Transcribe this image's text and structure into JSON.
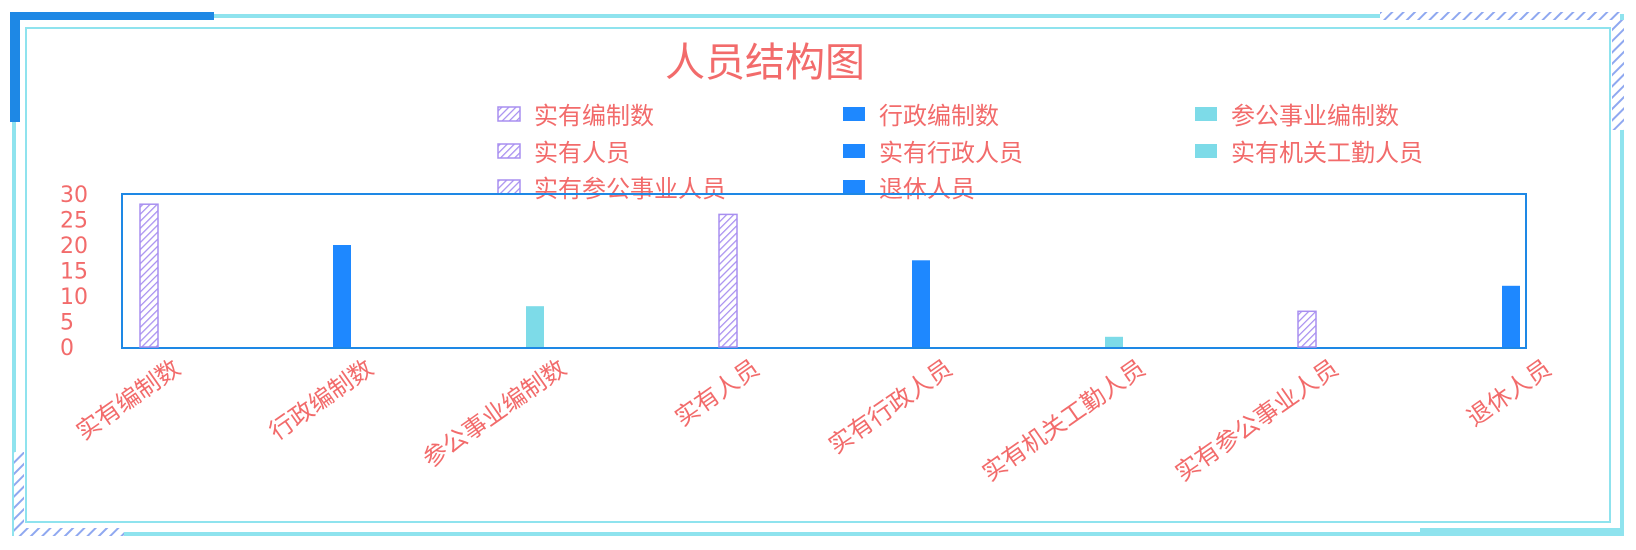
{
  "colors": {
    "label": "#f26b6b",
    "axis": "#1e88e5",
    "purple": "#a88ff0",
    "blue": "#1e88ff",
    "cyan": "#7ddbe8",
    "frame_cyan": "#8fe3ee",
    "frame_blue": "#1e88e5"
  },
  "chart_data": {
    "type": "bar",
    "title": "人员结构图",
    "categories": [
      "实有编制数",
      "行政编制数",
      "参公事业编制数",
      "实有人员",
      "实有行政人员",
      "实有机关工勤人员",
      "实有参公事业人员",
      "退休人员"
    ],
    "series": [
      {
        "name": "实有编制数",
        "category": "实有编制数",
        "value": 28,
        "style": "purple-hatched"
      },
      {
        "name": "行政编制数",
        "category": "行政编制数",
        "value": 20,
        "style": "blue-solid"
      },
      {
        "name": "参公事业编制数",
        "category": "参公事业编制数",
        "value": 8,
        "style": "cyan-solid"
      },
      {
        "name": "实有人员",
        "category": "实有人员",
        "value": 26,
        "style": "purple-hatched"
      },
      {
        "name": "实有行政人员",
        "category": "实有行政人员",
        "value": 17,
        "style": "blue-solid"
      },
      {
        "name": "实有机关工勤人员",
        "category": "实有机关工勤人员",
        "value": 2,
        "style": "cyan-solid"
      },
      {
        "name": "实有参公事业人员",
        "category": "实有参公事业人员",
        "value": 7,
        "style": "purple-hatched"
      },
      {
        "name": "退休人员",
        "category": "退休人员",
        "value": 12,
        "style": "blue-solid"
      }
    ],
    "ylim": [
      0,
      30
    ],
    "yticks": [
      0,
      5,
      10,
      15,
      20,
      25,
      30
    ],
    "legend_position": "top-right",
    "grid": false
  }
}
